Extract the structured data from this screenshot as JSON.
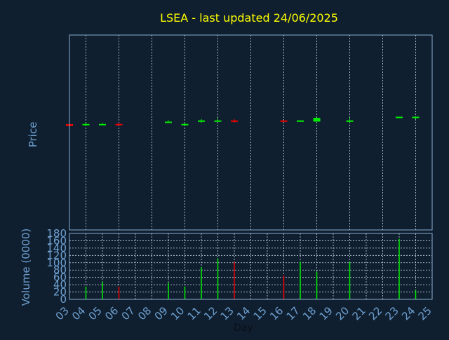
{
  "chart_data": {
    "type": "candlestick",
    "title": "LSEA - last updated 24/06/2025",
    "ylabel_price": "Price",
    "ylabel_volume": "Volume (0000)",
    "xlabel": "Day",
    "grid": true,
    "x_ticks": [
      "03",
      "04",
      "05",
      "06",
      "07",
      "08",
      "09",
      "10",
      "11",
      "12",
      "13",
      "14",
      "15",
      "16",
      "17",
      "18",
      "19",
      "20",
      "21",
      "22",
      "23",
      "24",
      "25"
    ],
    "volume_ticks": [
      "0",
      "20",
      "40",
      "60",
      "80",
      "100",
      "120",
      "140",
      "160",
      "180"
    ],
    "volume_ylim": [
      0,
      180
    ],
    "price_ylim": [
      0,
      10
    ],
    "colors": {
      "background": "#0f1f30",
      "up": "#00ee00",
      "down": "#ee0000",
      "grid": "#c8d8e8",
      "frame": "#8aaed0",
      "title": "#ffff00",
      "label": "#6fa0d0"
    },
    "candles": [
      {
        "day": "03",
        "open": 5.43,
        "close": 5.33,
        "high": 5.43,
        "low": 5.33
      },
      {
        "day": "04",
        "open": 5.38,
        "close": 5.44,
        "high": 5.5,
        "low": 5.33
      },
      {
        "day": "05",
        "open": 5.38,
        "close": 5.44,
        "high": 5.47,
        "low": 5.38
      },
      {
        "day": "06",
        "open": 5.44,
        "close": 5.38,
        "high": 5.5,
        "low": 5.38
      },
      {
        "day": "09",
        "open": 5.5,
        "close": 5.56,
        "high": 5.62,
        "low": 5.5
      },
      {
        "day": "10",
        "open": 5.38,
        "close": 5.44,
        "high": 5.5,
        "low": 5.38
      },
      {
        "day": "11",
        "open": 5.56,
        "close": 5.62,
        "high": 5.69,
        "low": 5.5
      },
      {
        "day": "12",
        "open": 5.56,
        "close": 5.62,
        "high": 5.75,
        "low": 5.56
      },
      {
        "day": "13",
        "open": 5.62,
        "close": 5.56,
        "high": 5.69,
        "low": 5.5
      },
      {
        "day": "16",
        "open": 5.62,
        "close": 5.56,
        "high": 5.62,
        "low": 5.56
      },
      {
        "day": "17",
        "open": 5.56,
        "close": 5.62,
        "high": 5.62,
        "low": 5.56
      },
      {
        "day": "18",
        "open": 5.56,
        "close": 5.75,
        "high": 5.75,
        "low": 5.56
      },
      {
        "day": "20",
        "open": 5.56,
        "close": 5.62,
        "high": 5.75,
        "low": 5.5
      },
      {
        "day": "23",
        "open": 5.75,
        "close": 5.81,
        "high": 5.81,
        "low": 5.75
      },
      {
        "day": "24",
        "open": 5.75,
        "close": 5.81,
        "high": 5.81,
        "low": 5.69
      }
    ],
    "volume": [
      {
        "day": "04",
        "value": 35,
        "dir": "up"
      },
      {
        "day": "05",
        "value": 48,
        "dir": "up"
      },
      {
        "day": "06",
        "value": 35,
        "dir": "down"
      },
      {
        "day": "09",
        "value": 45,
        "dir": "up"
      },
      {
        "day": "10",
        "value": 35,
        "dir": "up"
      },
      {
        "day": "11",
        "value": 88,
        "dir": "up"
      },
      {
        "day": "12",
        "value": 112,
        "dir": "up"
      },
      {
        "day": "13",
        "value": 102,
        "dir": "down"
      },
      {
        "day": "16",
        "value": 65,
        "dir": "down"
      },
      {
        "day": "17",
        "value": 103,
        "dir": "up"
      },
      {
        "day": "18",
        "value": 76,
        "dir": "up"
      },
      {
        "day": "20",
        "value": 102,
        "dir": "up"
      },
      {
        "day": "23",
        "value": 165,
        "dir": "up"
      },
      {
        "day": "24",
        "value": 25,
        "dir": "up"
      }
    ]
  }
}
